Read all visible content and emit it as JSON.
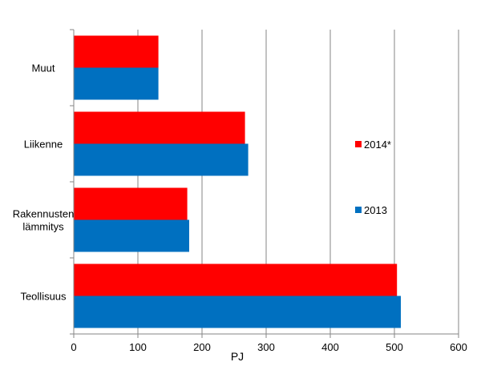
{
  "chart_data": {
    "type": "bar",
    "orientation": "horizontal",
    "categories": [
      "Muut",
      "Liikenne",
      "Rakennusten lämmitys",
      "Teollisuus"
    ],
    "category_lines": [
      [
        "Muut"
      ],
      [
        "Liikenne"
      ],
      [
        "Rakennusten",
        "lämmitys"
      ],
      [
        "Teollisuus"
      ]
    ],
    "series": [
      {
        "name": "2014*",
        "color": "#ff0000",
        "values": [
          132,
          267,
          177,
          504
        ]
      },
      {
        "name": "2013",
        "color": "#0070c0",
        "values": [
          132,
          272,
          180,
          510
        ]
      }
    ],
    "xlabel": "PJ",
    "ylabel": "",
    "xlim": [
      0,
      600
    ],
    "xticks": [
      "0",
      "100",
      "200",
      "300",
      "400",
      "500",
      "600"
    ],
    "grid": true,
    "legend_position": "right"
  }
}
